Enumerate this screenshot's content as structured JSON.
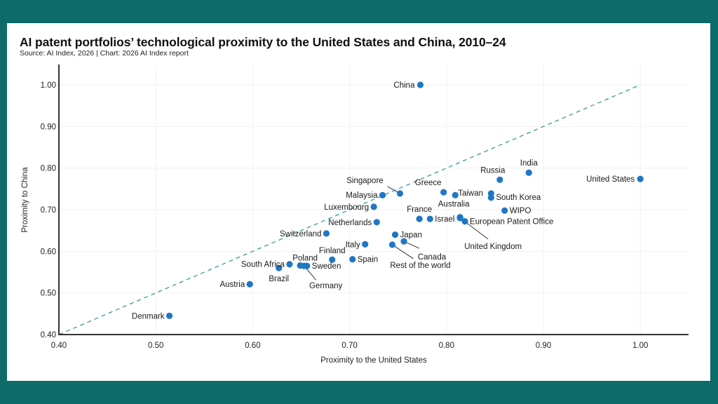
{
  "chart_data": {
    "type": "scatter",
    "title": "AI patent portfolios’ technological proximity to the United States and China, 2010–24",
    "subtitle": "Source: AI Index, 2026 | Chart: 2026 AI Index report",
    "xlabel": "Proximity to the United States",
    "ylabel": "Proximity to China",
    "xlim": [
      0.4,
      1.05
    ],
    "ylim": [
      0.4,
      1.05
    ],
    "xticks": [
      "0.40",
      "0.50",
      "0.60",
      "0.70",
      "0.80",
      "0.90",
      "1.00"
    ],
    "yticks": [
      "0.40",
      "0.50",
      "0.60",
      "0.70",
      "0.80",
      "0.90",
      "1.00"
    ],
    "grid": true,
    "reference_line": {
      "type": "diagonal",
      "style": "dashed",
      "from": [
        0.4,
        0.4
      ],
      "to": [
        1.0,
        1.0
      ]
    },
    "colors": {
      "point": "#1f77c4",
      "reference_line": "#3a9a96",
      "frame": "#0d6b69"
    },
    "points": [
      {
        "label": "China",
        "x": 0.773,
        "y": 1.0,
        "pos": "left"
      },
      {
        "label": "United States",
        "x": 1.0,
        "y": 0.774,
        "pos": "left"
      },
      {
        "label": "India",
        "x": 0.885,
        "y": 0.789,
        "pos": "above"
      },
      {
        "label": "Russia",
        "x": 0.855,
        "y": 0.772,
        "pos": "above-left"
      },
      {
        "label": "Greece",
        "x": 0.797,
        "y": 0.742,
        "pos": "above-left"
      },
      {
        "label": "Taiwan",
        "x": 0.809,
        "y": 0.735,
        "pos": "right"
      },
      {
        "label": "",
        "x": 0.846,
        "y": 0.739,
        "pos": "none"
      },
      {
        "label": "South Korea",
        "x": 0.846,
        "y": 0.729,
        "pos": "right"
      },
      {
        "label": "WIPO",
        "x": 0.86,
        "y": 0.698,
        "pos": "right"
      },
      {
        "label": "Singapore",
        "x": 0.752,
        "y": 0.739,
        "pos": "leader-above-left"
      },
      {
        "label": "Malaysia",
        "x": 0.734,
        "y": 0.735,
        "pos": "left"
      },
      {
        "label": "Luxembourg",
        "x": 0.725,
        "y": 0.707,
        "pos": "left"
      },
      {
        "label": "Netherlands",
        "x": 0.728,
        "y": 0.67,
        "pos": "left"
      },
      {
        "label": "France",
        "x": 0.772,
        "y": 0.678,
        "pos": "above"
      },
      {
        "label": "Israel",
        "x": 0.783,
        "y": 0.678,
        "pos": "right"
      },
      {
        "label": "Australia",
        "x": 0.814,
        "y": 0.682,
        "pos": "above"
      },
      {
        "label": "United Kingdom",
        "x": 0.814,
        "y": 0.68,
        "pos": "leader-below-right"
      },
      {
        "label": "European Patent Office",
        "x": 0.819,
        "y": 0.672,
        "pos": "right"
      },
      {
        "label": "Switzerland",
        "x": 0.676,
        "y": 0.643,
        "pos": "left"
      },
      {
        "label": "Japan",
        "x": 0.747,
        "y": 0.64,
        "pos": "right"
      },
      {
        "label": "Canada",
        "x": 0.756,
        "y": 0.624,
        "pos": "leader-below-right"
      },
      {
        "label": "Rest of the world",
        "x": 0.744,
        "y": 0.616,
        "pos": "leader-below"
      },
      {
        "label": "Italy",
        "x": 0.716,
        "y": 0.617,
        "pos": "left"
      },
      {
        "label": "Finland",
        "x": 0.682,
        "y": 0.58,
        "pos": "above"
      },
      {
        "label": "Spain",
        "x": 0.703,
        "y": 0.581,
        "pos": "right"
      },
      {
        "label": "South Africa",
        "x": 0.638,
        "y": 0.569,
        "pos": "left"
      },
      {
        "label": "Brazil",
        "x": 0.627,
        "y": 0.56,
        "pos": "below"
      },
      {
        "label": "Poland",
        "x": 0.649,
        "y": 0.566,
        "pos": "above"
      },
      {
        "label": "Germany",
        "x": 0.653,
        "y": 0.565,
        "pos": "leader-below-right"
      },
      {
        "label": "Sweden",
        "x": 0.656,
        "y": 0.565,
        "pos": "right"
      },
      {
        "label": "Austria",
        "x": 0.597,
        "y": 0.521,
        "pos": "left"
      },
      {
        "label": "Denmark",
        "x": 0.514,
        "y": 0.445,
        "pos": "left"
      }
    ]
  }
}
